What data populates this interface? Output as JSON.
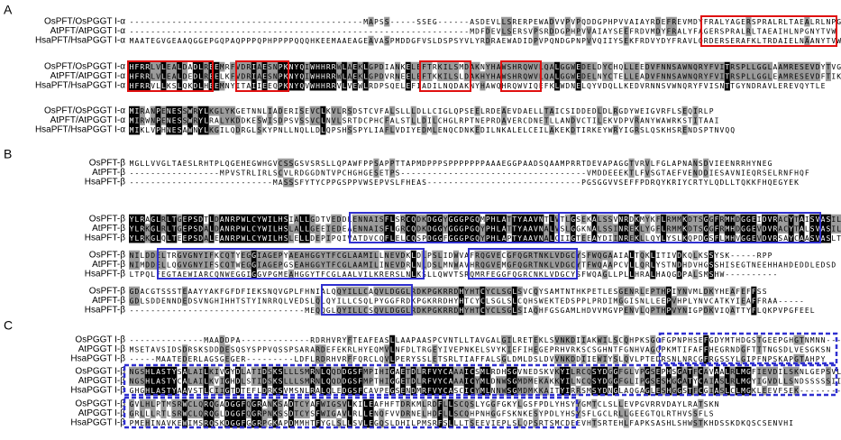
{
  "panels": [
    {
      "label": "A",
      "blocks": [
        {
          "rows": [
            {
              "name": "OsPFT/OsPGGT I-α",
              "seq": "--------------------------------------------MAPSS-----SSEG------ASDEVLLSRERPEWADVVPVPQDDGPHPVVAIAYRDEFREVMDYFRALYAGERSPRALRLTAEALRLNPGNYTVW"
            },
            {
              "name": "AtPFT/AtPGGT I-α",
              "seq": "----------------------------------------------------------------MDFDEVLSERSVPSRDDGPHPVVAIAYSEEFRDVMDYFRALYFAGERSPRALRLTAEAIHLNPGNYTVW"
            },
            {
              "name": "HsaPFT/HsaPGGT I-α",
              "seq": "MAATEGVGEAAQGGEPGQPAQPPPQPHPPPPQQQHKEEMAAEAGEAVASPMDDGFVSLDSPSYVLYRDRAEWADIDPVPQNDGPNPVVQIIYSEKFRDVYDYFRAVLQRDERSERAFKLTRDAIELNAANYTVW"
            }
          ]
        },
        {
          "rows": [
            {
              "name": "OsPFT/OsPGGT I-α",
              "seq": "HFRRLVLEALDADLREEMRFVDRIAESNPKNYQIWHHRRWLAEKLGPDIANKELEFTRKILSMDAKNYHAWSHRQWVLQALGGWEDELDYCHQLLEEDVFNNSAWNQRYFVITRSPLLGGLAAMRESEVDYTVG"
            },
            {
              "name": "AtPFT/AtPGGT I-α",
              "seq": "HFRRLVLEALDEDLREELKFVDRIAESNPKNYQIWHHRRWLAEKLGPDVRNEELEFTKKILSLDAKHYHAWSHRQWVLQALGGWEDELNYCTELLEADVFNNSAWNQRYFVITRSPLLGGLEAMRESEVDFTIK"
            },
            {
              "name": "HsaPFT/HsaPGGT I-α",
              "seq": "HFRRVLLKSLQKDLHEEMNYITAIIEEQPKNYQVWHHRRVLVEWLRDPSQELEFIADILNQDAKNYHAWQHRQWVIQEFKLWDNELQYVDQLLKEDVRNNSVWNQRYFVISNTTGYNDRAVLEREVQYTLE"
            }
          ]
        },
        {
          "rows": [
            {
              "name": "OsPFT/OsPGGT I-α",
              "seq": "MIRANPENESSWRYLKGLYKGETNNLIADERISEVCLKVLRSDSTCVFALSLLLDLLCIGLQPSEELRDEAEVDAELLTAICSIDDEDLDLRGDYWEIGVRFLSEQIRLP"
            },
            {
              "name": "AtPFT/AtPGGT I-α",
              "seq": "MIRWNPENESSWRYLRALYKDDKESWISDPSVSSVCLNVLSRTDCPHCFALSTLLDILCHGLRPTNEPRDAVERCDNETLLANDVCTILEKVDPVRANYWAWRKSTITAAI"
            },
            {
              "name": "HsaPFT/HsaPGGT I-α",
              "seq": "MIKLVPHNESAWNYLKGILQDRGLSKYPNLLNQLLDLQPSHSSPYLIAFLVDIYEDMLENQCDNKEDILNKALELCEILAKEKDTIRKEYWRYIGRSLQSKHSRENDSPTNVQQ"
            }
          ]
        }
      ]
    },
    {
      "label": "B",
      "blocks": [
        {
          "rows": [
            {
              "name": "OsPFT-β",
              "seq": "MGLLVVGLTAESLRHTPLQGEHEGWHGVCSSGSVSRSLLQPAWFPPSAPPTTAPMDPPPSPPPPPPPAAAEGGPAADSQAAMPRRTDEVAPAGGTVRVLFGLAPNANSDVIEENRRHYNEG"
            },
            {
              "name": "AtPFT-β",
              "seq": "-----------------MPVSTRLIRLSCVLRDGGDNTVPCHGHGESETPS-----------------------------------VMDDEEEKTLFVSGTAEFVENDDIESAVNIEQRSELRNFHQF"
            },
            {
              "name": "HsaPFT-β",
              "seq": "---------------------------MASSSFYTYCPPGSPPVWSEPVSLFHEAS-----------------------------PGSGGVVSEFFPDRQYKRIYCRTYLQDLLTQKKFHQEGYEK"
            }
          ]
        },
        {
          "rows": [
            {
              "name": "OsPFT-β",
              "seq": "YLRAGLRLTGEPSDTLDANRPWLCYWILHSIALLGDTVEDDLENNAISFLSRCQDKDGGYGGGPGQMPHLATTYAAVNTLVTLGSEKALSSVNRDKMYKFLRMMKDTSGGFRMHDGGEIDVRACYTAISVASILN"
            },
            {
              "name": "AtPFT-β",
              "seq": "YLRKGLRLTGEPSDALDANRPWLCYWILHSLALLGEEIEDEAENNAISFLGRCQDKDGGYGGGPGQYPHLATTYAAVNALVSLGGKNALSSINREKLYGFLRMMKDTSGGFRMHDGGEVDVRACYTALSVASILN"
            },
            {
              "name": "HsaPFT-β",
              "seq": "YLRKGLQLTEEPSDALEANRPWLCYWILHSLELLDEPIPQIVATDVCQFLELCQSPDGGFGGGPGQYPHLAPTYAAVNALCIIGTEEAYDIINREKLLQYLYSLKQPDGSFLMHVGGEVDVRSAYCAASVASLTN"
            }
          ]
        },
        {
          "rows": [
            {
              "name": "OsPFT-β",
              "seq": "NILDDELTRGVGNYIFKCQTYEGGIAGEPYAEAHGGYTFCGLAAMILLNEVDKLDLPSLIDWVAFRQGVECGFQGRTNKLVDGCYSFWQGAAIALTQKLITIVDKQLKSSYSK-----RPP"
            },
            {
              "name": "AtPFT-β",
              "seq": "NIMDDELLQGVGNYIFSCQTWEGGIAGEPGSEAHGGYTFCGLAAMILINEVDRLNLDSLMNWAVHRQGVEMGFQGRTNKLVDGCYTFWQAAPCVLLQRLYSTNDHDVHGSSHISEGTNEEHHAHDEDDLEDSD"
            },
            {
              "name": "HsaPFT-β",
              "seq": "LTPQLFEGTAEWIARCQNWEGGIGGVPGMEAHGGYTFCGLAALVILKRERSLNLKSLLQWVTSRQMRFEGGFQGRCNKLVDGCYSFWQAGLLPLLHRALHAQGDPALSMSHW----------"
            }
          ]
        },
        {
          "rows": [
            {
              "name": "OsPFT-β",
              "seq": "GDACGTSSSTEAAYYAKFGFDFIEKSNQVGPLFHNIALQQYILLCAQVLDGGLRDKPGKRRDHYHTCYCLSGLSVCQYSAMTNTHKPETLESGENRLEPTHPIYNVMLDKYHEAFEFFSS"
            },
            {
              "name": "AtPFT-β",
              "seq": "GDLSDDENNDEDSVNGHIHHTSTYINRRQLVEDSLQLQYILLCSQLPYGGFRDKPGKRRDHYHTCYCLSGLSLCQHSWEKTEDSPPLPRDIMGGISNLLEEPVHPLYNVCATKYIEAFFRAA-----"
            },
            {
              "name": "HsaPFT-β",
              "seq": "---------------------------------MEQQGLQYILLCSQVLDGGLRDKPGKRRDHYHTCYCLSGLSIAQHFGSGAMLHDVVMGVPENVLQPTHPVYNIGPDKVIQATTYFLQKPVPGFEEL"
            }
          ]
        }
      ]
    },
    {
      "label": "C",
      "blocks": [
        {
          "rows": [
            {
              "name": "OsPGGT I-β",
              "seq": "--------------MAADDPA-------------RDRHVRYFTEAFEASLLAAPAASPCVNTLLTAVGALGILRETEKLSVNKDIIAKWILSCQHPKSGGFGPNPHSEFGDYMTHDGSTGEEPGHGTNMNN----"
            },
            {
              "name": "AtPGGT I-β",
              "seq": "MSETAVSIDSDRSKSDDDESQSYSPPVQSSPSARARDEFEKRLHYEQMVLNFDLTRGEYIVEPNKELSVYKIEFIHEGEPRHVRKSCSGHNTFGNHVAGQPKMTIFAFFHEGRNDGFTTTNGSDLVESGKSN"
            },
            {
              "name": "HsaPGGT I-β",
              "seq": "-----MAATEDERLAGSGEGER---------LDFLRDRHVRFFQRCLQVLPERYSSLETSRLTIAFFALSGLDMLDSLDVVNKDDIIEWIYSLQVLPTEDRSNLNRCGFRGSSYLGIPFNPSKAPGTAHPY"
            }
          ]
        },
        {
          "rows": [
            {
              "name": "OsPGGT I-β",
              "seq": "NGSHLASTYSALAILKIVGYDLATIDSKSLLLSMRNLQQDDGSFMPIHIGAETDLRFVYCAAAICSMLRDHSGVNEDSKVKYILRCQSYDGGFGLVPGSEPHSGATFCAVAALRLMGFIEVDILSKNLGEPSVLE"
            },
            {
              "name": "AtPGGT I-β",
              "seq": "NGSHLASTYCALAILKVIGHDLSTIDSKSLLLSMRNLQQDDGSFMPTHIGGETDLRFVYCAAAICYMLDNWSGMDMEKAKKYILNCQSYDGGFGLIPGSESHGGATYCAIASLRLMGYIGVDLLSNDSSSSSIIDP"
            },
            {
              "name": "HsaPGGT I-β",
              "seq": "GHGHLASTYAAVSTLCIIGTDTEFLDRKSVMSNLRALQLEDGSFCAVPEGSENDMRFVYCASCICYMLNNWSGMDMKKAITYIRRSMSYDNGLAQGAGLESHGGSTFCGIASLCLMGKLEEVFSEK--------E"
            }
          ]
        },
        {
          "rows": [
            {
              "name": "OsPGGT I-β",
              "seq": "GVLHLPTMSRWCLQRQGADGGFQGRANKSADTCYAFWIGSVLKILEAFHFTDRKMLRDFLLSCQSLYGGFGKYLGSFPDLYHSYYGMTCLSLLEVPGVRRVDAYLRATSKN"
            },
            {
              "name": "AtPGGT I-β",
              "seq": "GRLLLRTLSRWCLQRQGLDGGFQGRPNKSSDTCYSFWIGAVLRLLENQFVVDRNELHDFLLSCQHPNHGGFSKNKESYPDLYHSYSFLGCLRLLGEEGTQLRTHVSSFLS"
            },
            {
              "name": "HsaPGGT I-β",
              "seq": "PMEHINAVKEWIMSRQSKDGGFGGRPGKAPDMMHTFYGLSLLSVLEGQSLDHILPMSRFSLLLTSEEVIEPLSLQPSRTSMCDEEVHTSRTEHLFAPKSASHLSHWSTKHDSSKDKQSCSENVHI"
            }
          ]
        }
      ]
    }
  ]
}
